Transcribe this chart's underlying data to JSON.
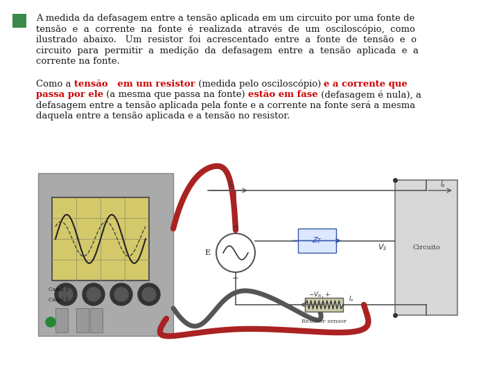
{
  "background_color": "#ffffff",
  "green_square_color": "#3a8a4a",
  "fontsize": 9.5,
  "text_color": "#1a1a1a",
  "red_color": "#cc0000",
  "p1_lines": [
    "A medida da defasagem entre a tensão aplicada em um circuito por uma fonte de",
    "tensão  e  a  corrente  na  fonte  é  realizada  através  de  um  osciloscópio,  como",
    "ilustrado  abaixo.   Um  resistor  foi  acrescentado  entre  a  fonte  de  tensão  e  o",
    "circuito  para  permitir  a  medição  da  defasagem  entre  a  tensão  aplicada  e  a",
    "corrente na fonte."
  ],
  "p2_lines": [
    [
      [
        "Como a ",
        false,
        false
      ],
      [
        "tensão   em um resistor",
        true,
        true
      ],
      [
        " (medida pelo osciloscópio) ",
        false,
        false
      ],
      [
        "e a corrente que",
        true,
        true
      ]
    ],
    [
      [
        "passa por ele",
        true,
        true
      ],
      [
        " (a mesma que passa na fonte) ",
        false,
        false
      ],
      [
        "estão em fase",
        true,
        true
      ],
      [
        " (defasagem é nula), a",
        false,
        false
      ]
    ],
    [
      [
        "defasagem entre a tensão aplicada pela fonte e a corrente na fonte será a mesma",
        false,
        false
      ]
    ],
    [
      [
        "daquela entre a tensão aplicada e a tensão no resistor.",
        false,
        false
      ]
    ]
  ]
}
